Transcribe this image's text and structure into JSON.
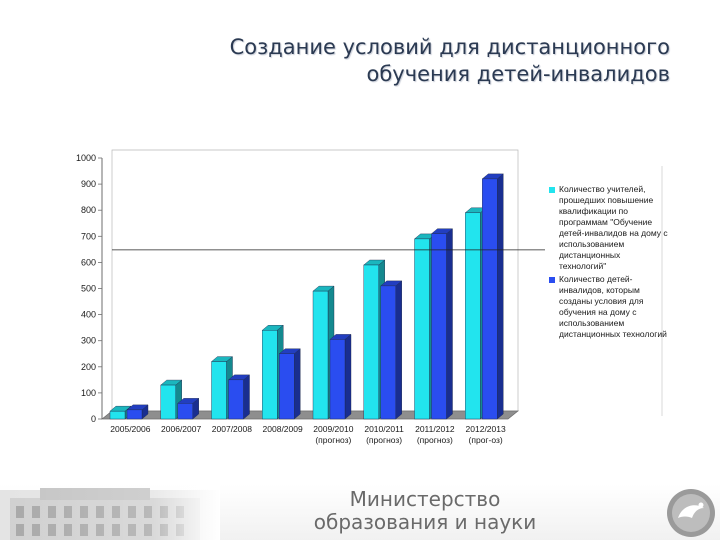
{
  "slide": {
    "title_line1": "Создание условий для дистанционного",
    "title_line2": "обучения детей-инвалидов"
  },
  "chart_data": {
    "type": "bar",
    "categories": [
      [
        "2005/2006"
      ],
      [
        "2006/2007"
      ],
      [
        "2007/2008"
      ],
      [
        "2008/2009"
      ],
      [
        "2009/2010",
        "(прогноз)"
      ],
      [
        "2010/2011",
        "(прогноз)"
      ],
      [
        "2011/2012",
        "(прогноз)"
      ],
      [
        "2012/2013",
        "(прог-оз)"
      ]
    ],
    "series": [
      {
        "name": "Количество учителей, прошедших повышение квалификации по программам \"Обучение детей-инвалидов на дому с использованием дистанционных технологий\"",
        "color": "#22e4ee",
        "values": [
          30,
          130,
          220,
          340,
          490,
          590,
          690,
          790
        ]
      },
      {
        "name": "Количество детей-инвалидов, которым созданы условия для обучения на дому с использованием дистанционных технологий",
        "color": "#2a4df0",
        "values": [
          35,
          60,
          150,
          250,
          305,
          510,
          710,
          920
        ]
      }
    ],
    "yticks": [
      "0",
      "100",
      "200",
      "300",
      "400",
      "500",
      "600",
      "700",
      "800",
      "900",
      "1000"
    ],
    "ylim": [
      0,
      1000
    ],
    "legend_position": "right",
    "grid": false
  },
  "footer": {
    "line1": "Министерство",
    "line2": "образования и науки"
  },
  "icons": {
    "logo": "republic-emblem-icon",
    "building": "ministry-building-icon"
  }
}
